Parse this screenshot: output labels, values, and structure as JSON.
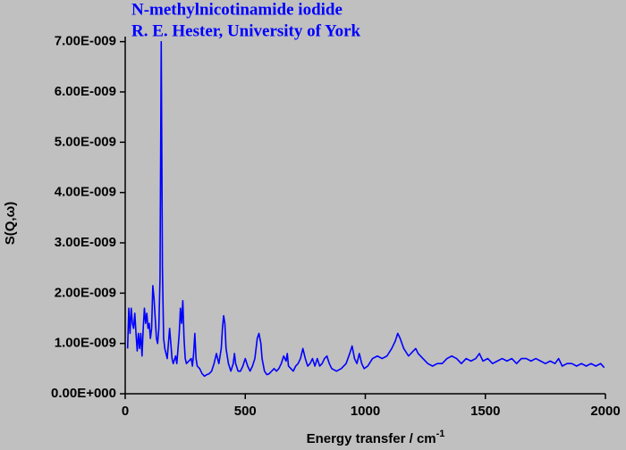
{
  "chart_data": {
    "type": "line",
    "title": "N-methylnicotinamide iodide",
    "subtitle": "R. E. Hester, University of York",
    "xlabel": "Energy transfer / cm",
    "xlabel_superscript": "-1",
    "ylabel": "S(Q,ω)",
    "xlim": [
      0,
      2000
    ],
    "xticks": [
      0,
      500,
      1000,
      1500,
      2000
    ],
    "ylim": [
      0,
      7.1e-09
    ],
    "yticks": [
      {
        "value": 0,
        "label": "0.00E+000"
      },
      {
        "value": 1e-09,
        "label": "1.00E-009"
      },
      {
        "value": 2e-09,
        "label": "2.00E-009"
      },
      {
        "value": 3e-09,
        "label": "3.00E-009"
      },
      {
        "value": 4e-09,
        "label": "4.00E-009"
      },
      {
        "value": 5e-09,
        "label": "5.00E-009"
      },
      {
        "value": 6e-09,
        "label": "6.00E-009"
      },
      {
        "value": 7e-09,
        "label": "7.00E-009"
      }
    ],
    "color": "#0000ff",
    "grid": false,
    "x": [
      10,
      15,
      20,
      25,
      30,
      35,
      40,
      45,
      50,
      55,
      60,
      65,
      70,
      75,
      80,
      85,
      90,
      95,
      100,
      105,
      110,
      115,
      120,
      125,
      130,
      135,
      140,
      145,
      150,
      155,
      160,
      165,
      170,
      175,
      180,
      185,
      190,
      195,
      200,
      210,
      215,
      225,
      230,
      235,
      240,
      245,
      250,
      255,
      265,
      275,
      280,
      285,
      290,
      295,
      300,
      310,
      320,
      330,
      340,
      350,
      360,
      370,
      380,
      390,
      400,
      405,
      410,
      415,
      420,
      430,
      440,
      450,
      455,
      460,
      470,
      480,
      490,
      500,
      510,
      520,
      530,
      540,
      550,
      557,
      565,
      570,
      580,
      590,
      600,
      610,
      620,
      630,
      640,
      650,
      660,
      670,
      675,
      680,
      690,
      700,
      710,
      720,
      730,
      740,
      750,
      760,
      770,
      780,
      790,
      800,
      810,
      820,
      830,
      840,
      850,
      860,
      880,
      900,
      920,
      935,
      945,
      955,
      965,
      975,
      985,
      995,
      1010,
      1030,
      1050,
      1070,
      1090,
      1110,
      1125,
      1135,
      1145,
      1160,
      1180,
      1200,
      1210,
      1220,
      1240,
      1260,
      1280,
      1300,
      1320,
      1340,
      1360,
      1380,
      1400,
      1420,
      1440,
      1460,
      1475,
      1490,
      1510,
      1530,
      1550,
      1570,
      1590,
      1610,
      1630,
      1650,
      1670,
      1690,
      1710,
      1730,
      1750,
      1770,
      1790,
      1805,
      1820,
      1840,
      1860,
      1880,
      1900,
      1920,
      1940,
      1960,
      1980,
      1995
    ],
    "values": [
      9e-10,
      1.7e-09,
      1.2e-09,
      1.7e-09,
      1.4e-09,
      1.3e-09,
      1.6e-09,
      1.2e-09,
      8.5e-10,
      1.2e-09,
      9e-10,
      1.2e-09,
      7.5e-10,
      1.3e-09,
      1.7e-09,
      1.4e-09,
      1.6e-09,
      1.3e-09,
      1.4e-09,
      1.1e-09,
      1.3e-09,
      2.15e-09,
      1.9e-09,
      1.5e-09,
      1.1e-09,
      1e-09,
      1.3e-09,
      2.3e-09,
      7e-09,
      2.5e-09,
      1.1e-09,
      9e-10,
      8e-10,
      7e-10,
      1e-09,
      1.3e-09,
      1e-09,
      7e-10,
      6e-10,
      7.5e-10,
      6e-10,
      1.2e-09,
      1.7e-09,
      1.4e-09,
      1.85e-09,
      1.1e-09,
      7e-10,
      6e-10,
      6.5e-10,
      7e-10,
      5.5e-10,
      8e-10,
      1.2e-09,
      7e-10,
      5.5e-10,
      5e-10,
      4e-10,
      3.5e-10,
      3.8e-10,
      4e-10,
      4.5e-10,
      6e-10,
      8e-10,
      6e-10,
      9e-10,
      1.3e-09,
      1.55e-09,
      1.4e-09,
      9e-10,
      6e-10,
      4.5e-10,
      6e-10,
      8e-10,
      6e-10,
      4.5e-10,
      4.5e-10,
      5.5e-10,
      7e-10,
      5.5e-10,
      4.5e-10,
      5.5e-10,
      7e-10,
      1.1e-09,
      1.2e-09,
      1e-09,
      7e-10,
      4.5e-10,
      3.8e-10,
      4e-10,
      4.5e-10,
      5e-10,
      4.5e-10,
      5e-10,
      6e-10,
      7.5e-10,
      6.5e-10,
      8e-10,
      5.5e-10,
      5e-10,
      4.5e-10,
      5.5e-10,
      6e-10,
      7e-10,
      9e-10,
      7e-10,
      5.5e-10,
      6e-10,
      7e-10,
      5.5e-10,
      7e-10,
      5.5e-10,
      6e-10,
      7e-10,
      7.5e-10,
      6e-10,
      5e-10,
      4.5e-10,
      5e-10,
      6e-10,
      8e-10,
      9.5e-10,
      7e-10,
      6e-10,
      8e-10,
      6e-10,
      5e-10,
      5.5e-10,
      7e-10,
      7.5e-10,
      7e-10,
      7.5e-10,
      9e-10,
      1.05e-09,
      1.2e-09,
      1.1e-09,
      9e-10,
      7.5e-10,
      8.5e-10,
      9e-10,
      8e-10,
      7e-10,
      6e-10,
      5.5e-10,
      6e-10,
      6e-10,
      7e-10,
      7.5e-10,
      7e-10,
      6e-10,
      7e-10,
      6.5e-10,
      7e-10,
      8e-10,
      6.5e-10,
      7e-10,
      6e-10,
      6.5e-10,
      7e-10,
      6.5e-10,
      7e-10,
      6e-10,
      7e-10,
      7e-10,
      6.5e-10,
      7e-10,
      6.5e-10,
      6e-10,
      6.5e-10,
      6e-10,
      7e-10,
      5.5e-10,
      6e-10,
      6e-10,
      5.5e-10,
      6e-10,
      5.5e-10,
      6e-10,
      5.5e-10,
      6e-10,
      5.2e-10
    ]
  }
}
